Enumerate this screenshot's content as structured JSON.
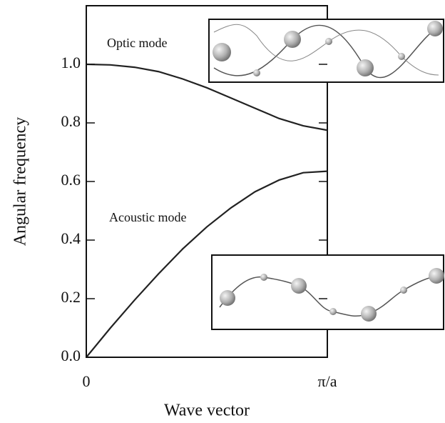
{
  "chart_data": {
    "type": "line",
    "x": [
      0,
      0.1,
      0.2,
      0.3,
      0.4,
      0.5,
      0.6,
      0.7,
      0.8,
      0.9,
      1.0
    ],
    "series": [
      {
        "color": "#222222",
        "values": [
          1.0,
          0.998,
          0.99,
          0.975,
          0.95,
          0.92,
          0.885,
          0.85,
          0.815,
          0.79,
          0.775
        ]
      },
      {
        "color": "#222222",
        "values": [
          0,
          0.1,
          0.195,
          0.285,
          0.37,
          0.445,
          0.51,
          0.565,
          0.605,
          0.63,
          0.635
        ]
      }
    ],
    "annotations": [
      "Optic mode",
      "Acoustic mode"
    ],
    "xlabel": "Wave vector",
    "ylabel": "Angular frequency",
    "xlim": [
      0,
      1
    ],
    "xticks": [
      0,
      {
        "value": 1,
        "label": "π/a"
      }
    ],
    "ylim": [
      0,
      1.2
    ],
    "yticks": [
      {
        "value": 0,
        "label": "0.0"
      },
      0.2,
      0.4,
      0.6,
      0.8,
      {
        "value": 1,
        "label": "1.0"
      }
    ]
  }
}
